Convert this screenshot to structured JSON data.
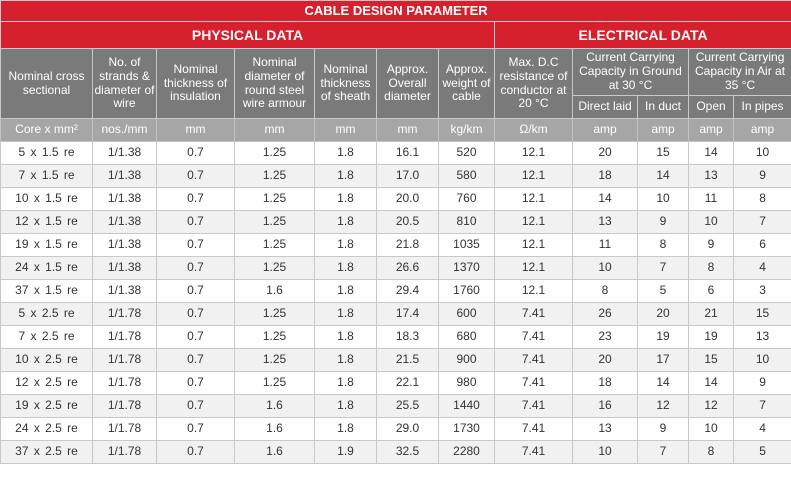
{
  "title": "CABLE DESIGN PARAMETER",
  "sections": {
    "physical": "PHYSICAL DATA",
    "electrical": "ELECTRICAL DATA"
  },
  "headers": {
    "cross_section": "Nominal cross sectional",
    "strands": "No. of strands & diameter of wire",
    "insulation": "Nominal thickness of insulation",
    "armour": "Nominal diameter of round steel wire armour",
    "sheath": "Nominal thickness of sheath",
    "overall_diameter": "Approx. Overall diameter",
    "weight": "Approx. weight of cable",
    "resistance": "Max. D.C resistance of conductor at 20 °C",
    "ground_capacity": "Current Carrying Capacity in Ground at 30 °C",
    "air_capacity": "Current Carrying Capacity in Air at 35 °C",
    "direct_laid": "Direct laid",
    "in_duct": "In duct",
    "open": "Open",
    "in_pipes": "In pipes"
  },
  "units": [
    "Core x mm²",
    "nos./mm",
    "mm",
    "mm",
    "mm",
    "mm",
    "kg/km",
    "Ω/km",
    "amp",
    "amp",
    "amp",
    "amp"
  ],
  "rows": [
    [
      "5 x 1.5 re",
      "1/1.38",
      "0.7",
      "1.25",
      "1.8",
      "16.1",
      "520",
      "12.1",
      "20",
      "15",
      "14",
      "10"
    ],
    [
      "7 x 1.5 re",
      "1/1.38",
      "0.7",
      "1.25",
      "1.8",
      "17.0",
      "580",
      "12.1",
      "18",
      "14",
      "13",
      "9"
    ],
    [
      "10 x 1.5 re",
      "1/1.38",
      "0.7",
      "1.25",
      "1.8",
      "20.0",
      "760",
      "12.1",
      "14",
      "10",
      "11",
      "8"
    ],
    [
      "12 x 1.5 re",
      "1/1.38",
      "0.7",
      "1.25",
      "1.8",
      "20.5",
      "810",
      "12.1",
      "13",
      "9",
      "10",
      "7"
    ],
    [
      "19 x 1.5 re",
      "1/1.38",
      "0.7",
      "1.25",
      "1.8",
      "21.8",
      "1035",
      "12.1",
      "11",
      "8",
      "9",
      "6"
    ],
    [
      "24 x 1.5 re",
      "1/1.38",
      "0.7",
      "1.25",
      "1.8",
      "26.6",
      "1370",
      "12.1",
      "10",
      "7",
      "8",
      "4"
    ],
    [
      "37 x 1.5 re",
      "1/1.38",
      "0.7",
      "1.6",
      "1.8",
      "29.4",
      "1760",
      "12.1",
      "8",
      "5",
      "6",
      "3"
    ],
    [
      "5 x 2.5 re",
      "1/1.78",
      "0.7",
      "1.25",
      "1.8",
      "17.4",
      "600",
      "7.41",
      "26",
      "20",
      "21",
      "15"
    ],
    [
      "7 x 2.5 re",
      "1/1.78",
      "0.7",
      "1.25",
      "1.8",
      "18.3",
      "680",
      "7.41",
      "23",
      "19",
      "19",
      "13"
    ],
    [
      "10 x 2.5 re",
      "1/1.78",
      "0.7",
      "1.25",
      "1.8",
      "21.5",
      "900",
      "7.41",
      "20",
      "17",
      "15",
      "10"
    ],
    [
      "12 x 2.5 re",
      "1/1.78",
      "0.7",
      "1.25",
      "1.8",
      "22.1",
      "980",
      "7.41",
      "18",
      "14",
      "14",
      "9"
    ],
    [
      "19 x 2.5 re",
      "1/1.78",
      "0.7",
      "1.6",
      "1.8",
      "25.5",
      "1440",
      "7.41",
      "16",
      "12",
      "12",
      "7"
    ],
    [
      "24 x 2.5 re",
      "1/1.78",
      "0.7",
      "1.6",
      "1.8",
      "29.0",
      "1730",
      "7.41",
      "13",
      "9",
      "10",
      "4"
    ],
    [
      "37 x 2.5 re",
      "1/1.78",
      "0.7",
      "1.6",
      "1.9",
      "32.5",
      "2280",
      "7.41",
      "10",
      "7",
      "8",
      "5"
    ]
  ]
}
